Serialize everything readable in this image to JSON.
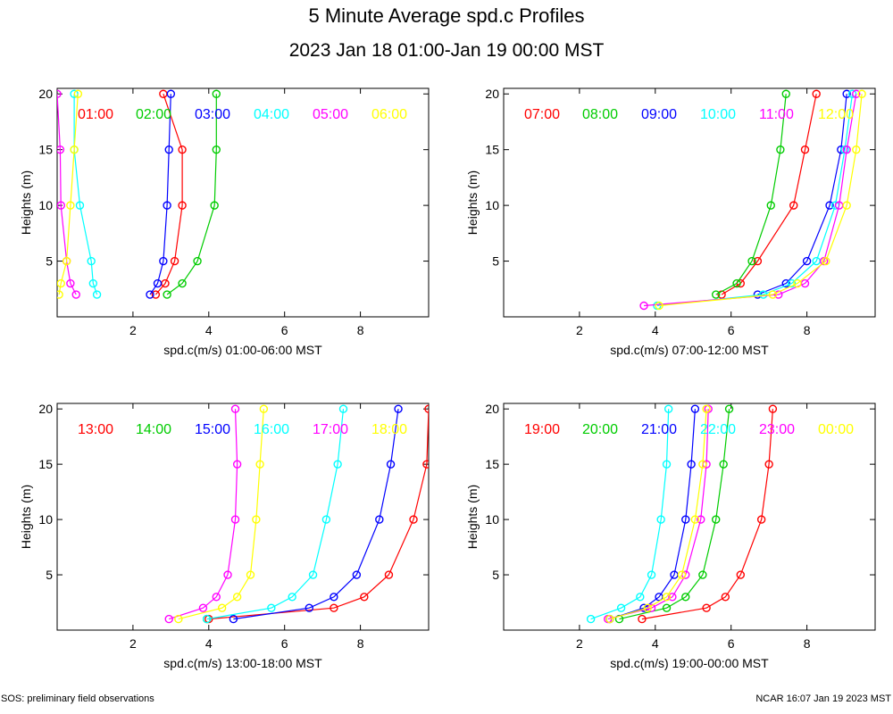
{
  "title": "5 Minute Average spd.c Profiles",
  "subtitle": "2023 Jan 18 01:00-Jan 19 00:00 MST",
  "footer": {
    "left": "SOS: preliminary field observations",
    "right": "NCAR 16:07 Jan 19 2023 MST"
  },
  "colors": [
    "#ff0000",
    "#00cc00",
    "#0000ff",
    "#00ffff",
    "#ff00ff",
    "#ffff00"
  ],
  "chart_data": [
    {
      "type": "line",
      "title": "",
      "xlabel": "spd.c(m/s) 01:00-06:00 MST",
      "ylabel": "Heights (m)",
      "xlim": [
        0,
        9.8
      ],
      "ylim": [
        0,
        20.5
      ],
      "xticks": [
        2,
        4,
        6,
        8
      ],
      "yticks": [
        5,
        10,
        15,
        20
      ],
      "series": [
        {
          "name": "01:00",
          "heights": [
            20,
            15,
            10,
            5,
            3,
            2
          ],
          "values": [
            2.8,
            3.3,
            3.3,
            3.1,
            2.85,
            2.6
          ]
        },
        {
          "name": "02:00",
          "heights": [
            20,
            15,
            10,
            5,
            3,
            2
          ],
          "values": [
            4.2,
            4.2,
            4.15,
            3.7,
            3.3,
            2.9
          ]
        },
        {
          "name": "03:00",
          "heights": [
            20,
            15,
            10,
            5,
            3,
            2
          ],
          "values": [
            3.0,
            2.95,
            2.9,
            2.8,
            2.65,
            2.45
          ]
        },
        {
          "name": "04:00",
          "heights": [
            20,
            15,
            10,
            5,
            3,
            2
          ],
          "values": [
            0.45,
            0.45,
            0.6,
            0.9,
            0.95,
            1.05
          ]
        },
        {
          "name": "05:00",
          "heights": [
            20,
            15,
            10,
            5,
            3,
            2
          ],
          "values": [
            0.0,
            0.08,
            0.1,
            0.25,
            0.35,
            0.5
          ]
        },
        {
          "name": "06:00",
          "heights": [
            20,
            15,
            10,
            5,
            3,
            2
          ],
          "values": [
            0.55,
            0.45,
            0.35,
            0.25,
            0.1,
            0.05
          ]
        }
      ]
    },
    {
      "type": "line",
      "title": "",
      "xlabel": "spd.c(m/s) 07:00-12:00 MST",
      "ylabel": "Heights (m)",
      "xlim": [
        0,
        9.8
      ],
      "ylim": [
        0,
        20.5
      ],
      "xticks": [
        2,
        4,
        6,
        8
      ],
      "yticks": [
        5,
        10,
        15,
        20
      ],
      "series": [
        {
          "name": "07:00",
          "heights": [
            20,
            15,
            10,
            5,
            3,
            2
          ],
          "values": [
            8.25,
            7.95,
            7.65,
            6.7,
            6.25,
            5.75
          ]
        },
        {
          "name": "08:00",
          "heights": [
            20,
            15,
            10,
            5,
            3,
            2
          ],
          "values": [
            7.45,
            7.3,
            7.05,
            6.55,
            6.15,
            5.6
          ]
        },
        {
          "name": "09:00",
          "heights": [
            20,
            15,
            10,
            5,
            3,
            2
          ],
          "values": [
            9.05,
            8.9,
            8.6,
            8.0,
            7.45,
            6.7
          ]
        },
        {
          "name": "10:00",
          "heights": [
            20,
            15,
            10,
            5,
            3,
            2,
            1
          ],
          "values": [
            9.2,
            9.0,
            8.75,
            8.25,
            7.6,
            6.85,
            4.05
          ]
        },
        {
          "name": "11:00",
          "heights": [
            20,
            15,
            10,
            5,
            3,
            2,
            1
          ],
          "values": [
            9.3,
            9.05,
            8.85,
            8.45,
            7.95,
            7.25,
            3.7
          ]
        },
        {
          "name": "12:00",
          "heights": [
            20,
            15,
            10,
            5,
            3,
            2,
            1
          ],
          "values": [
            9.45,
            9.3,
            9.05,
            8.5,
            7.75,
            7.1,
            4.1
          ]
        }
      ]
    },
    {
      "type": "line",
      "title": "",
      "xlabel": "spd.c(m/s) 13:00-18:00 MST",
      "ylabel": "Heights (m)",
      "xlim": [
        0,
        9.8
      ],
      "ylim": [
        0,
        20.5
      ],
      "xticks": [
        2,
        4,
        6,
        8
      ],
      "yticks": [
        5,
        10,
        15,
        20
      ],
      "series": [
        {
          "name": "13:00",
          "heights": [
            20,
            15,
            10,
            5,
            3,
            2,
            1
          ],
          "values": [
            9.8,
            9.75,
            9.4,
            8.75,
            8.1,
            7.3,
            4.0
          ]
        },
        {
          "name": "14:00",
          "heights": [
            1
          ],
          "values": [
            3.95
          ]
        },
        {
          "name": "15:00",
          "heights": [
            20,
            15,
            10,
            5,
            3,
            2,
            1
          ],
          "values": [
            9.0,
            8.8,
            8.5,
            7.9,
            7.3,
            6.65,
            4.65
          ]
        },
        {
          "name": "16:00",
          "heights": [
            20,
            15,
            10,
            5,
            3,
            2,
            1
          ],
          "values": [
            7.55,
            7.4,
            7.1,
            6.75,
            6.2,
            5.65,
            3.95
          ]
        },
        {
          "name": "17:00",
          "heights": [
            20,
            15,
            10,
            5,
            3,
            2,
            1
          ],
          "values": [
            4.7,
            4.75,
            4.7,
            4.5,
            4.2,
            3.85,
            2.95
          ]
        },
        {
          "name": "18:00",
          "heights": [
            20,
            15,
            10,
            5,
            3,
            2,
            1
          ],
          "values": [
            5.45,
            5.35,
            5.25,
            5.1,
            4.75,
            4.35,
            3.2
          ]
        }
      ]
    },
    {
      "type": "line",
      "title": "",
      "xlabel": "spd.c(m/s) 19:00-00:00 MST",
      "ylabel": "Heights (m)",
      "xlim": [
        0,
        9.8
      ],
      "ylim": [
        0,
        20.5
      ],
      "xticks": [
        2,
        4,
        6,
        8
      ],
      "yticks": [
        5,
        10,
        15,
        20
      ],
      "series": [
        {
          "name": "19:00",
          "heights": [
            20,
            15,
            10,
            5,
            3,
            2,
            1
          ],
          "values": [
            7.1,
            7.0,
            6.8,
            6.25,
            5.85,
            5.35,
            3.65
          ]
        },
        {
          "name": "20:00",
          "heights": [
            20,
            15,
            10,
            5,
            3,
            2,
            1
          ],
          "values": [
            5.95,
            5.8,
            5.6,
            5.25,
            4.8,
            4.3,
            3.05
          ]
        },
        {
          "name": "21:00",
          "heights": [
            20,
            15,
            10,
            5,
            3,
            2,
            1
          ],
          "values": [
            5.05,
            4.95,
            4.8,
            4.5,
            4.1,
            3.7,
            2.8
          ]
        },
        {
          "name": "22:00",
          "heights": [
            20,
            15,
            10,
            5,
            3,
            2,
            1
          ],
          "values": [
            4.35,
            4.3,
            4.15,
            3.9,
            3.6,
            3.1,
            2.3
          ]
        },
        {
          "name": "23:00",
          "heights": [
            20,
            15,
            10,
            5,
            3,
            2,
            1
          ],
          "values": [
            5.4,
            5.35,
            5.2,
            4.8,
            4.45,
            3.9,
            2.75
          ]
        },
        {
          "name": "00:00",
          "heights": [
            20,
            15,
            10,
            5,
            3,
            2,
            1
          ],
          "values": [
            5.35,
            5.25,
            5.05,
            4.7,
            4.3,
            3.8,
            2.8
          ]
        }
      ]
    }
  ]
}
